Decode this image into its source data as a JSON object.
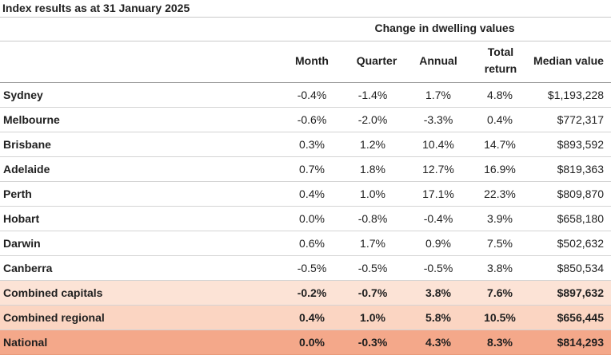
{
  "title": "Index results as at 31 January 2025",
  "group_header": "Change in dwelling values",
  "columns": {
    "month": "Month",
    "quarter": "Quarter",
    "annual": "Annual",
    "total_return_1": "Total",
    "total_return_2": "return",
    "median": "Median value"
  },
  "rows": [
    {
      "name": "Sydney",
      "month": "-0.4%",
      "quarter": "-1.4%",
      "annual": "1.7%",
      "total": "4.8%",
      "median": "$1,193,228"
    },
    {
      "name": "Melbourne",
      "month": "-0.6%",
      "quarter": "-2.0%",
      "annual": "-3.3%",
      "total": "0.4%",
      "median": "$772,317"
    },
    {
      "name": "Brisbane",
      "month": "0.3%",
      "quarter": "1.2%",
      "annual": "10.4%",
      "total": "14.7%",
      "median": "$893,592"
    },
    {
      "name": "Adelaide",
      "month": "0.7%",
      "quarter": "1.8%",
      "annual": "12.7%",
      "total": "16.9%",
      "median": "$819,363"
    },
    {
      "name": "Perth",
      "month": "0.4%",
      "quarter": "1.0%",
      "annual": "17.1%",
      "total": "22.3%",
      "median": "$809,870"
    },
    {
      "name": "Hobart",
      "month": "0.0%",
      "quarter": "-0.8%",
      "annual": "-0.4%",
      "total": "3.9%",
      "median": "$658,180"
    },
    {
      "name": "Darwin",
      "month": "0.6%",
      "quarter": "1.7%",
      "annual": "0.9%",
      "total": "7.5%",
      "median": "$502,632"
    },
    {
      "name": "Canberra",
      "month": "-0.5%",
      "quarter": "-0.5%",
      "annual": "-0.5%",
      "total": "3.8%",
      "median": "$850,534"
    },
    {
      "name": "Combined capitals",
      "month": "-0.2%",
      "quarter": "-0.7%",
      "annual": "3.8%",
      "total": "7.6%",
      "median": "$897,632"
    },
    {
      "name": "Combined regional",
      "month": "0.4%",
      "quarter": "1.0%",
      "annual": "5.8%",
      "total": "10.5%",
      "median": "$656,445"
    },
    {
      "name": "National",
      "month": "0.0%",
      "quarter": "-0.3%",
      "annual": "4.3%",
      "total": "8.3%",
      "median": "$814,293"
    }
  ],
  "colors": {
    "combined_capitals_bg": "#fce3d6",
    "combined_regional_bg": "#fbd5c2",
    "national_bg": "#f4a88a"
  }
}
